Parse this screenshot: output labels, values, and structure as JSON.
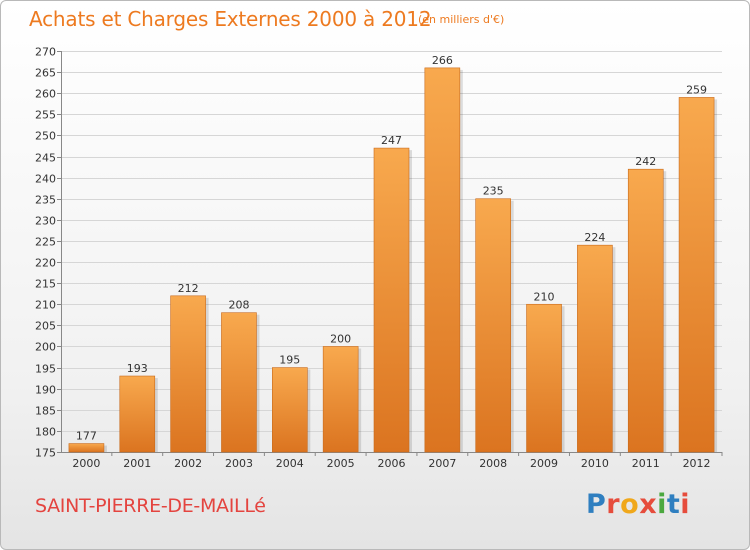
{
  "header": {
    "title": "Achats et Charges Externes 2000 à 2012",
    "subtitle": "(en milliers d'€)"
  },
  "footer": {
    "commune": "SAINT-PIERRE-DE-MAILLé",
    "logo_letters": [
      "P",
      "r",
      "o",
      "x",
      "i",
      "t",
      "i"
    ]
  },
  "colors": {
    "bar_light": "#f8a94e",
    "bar_dark": "#db7420",
    "title": "#ed7a20",
    "commune": "#e4443f"
  },
  "chart_data": {
    "type": "bar",
    "title": "Achats et Charges Externes 2000 à 2012",
    "subtitle": "(en milliers d'€)",
    "categories": [
      "2000",
      "2001",
      "2002",
      "2003",
      "2004",
      "2005",
      "2006",
      "2007",
      "2008",
      "2009",
      "2010",
      "2011",
      "2012"
    ],
    "values": [
      177,
      193,
      212,
      208,
      195,
      200,
      247,
      266,
      235,
      210,
      224,
      242,
      259
    ],
    "ylim": [
      175,
      270
    ],
    "yticks": [
      175,
      180,
      185,
      190,
      195,
      200,
      205,
      210,
      215,
      220,
      225,
      230,
      235,
      240,
      245,
      250,
      255,
      260,
      265,
      270
    ],
    "grid": true,
    "legend": "none"
  }
}
